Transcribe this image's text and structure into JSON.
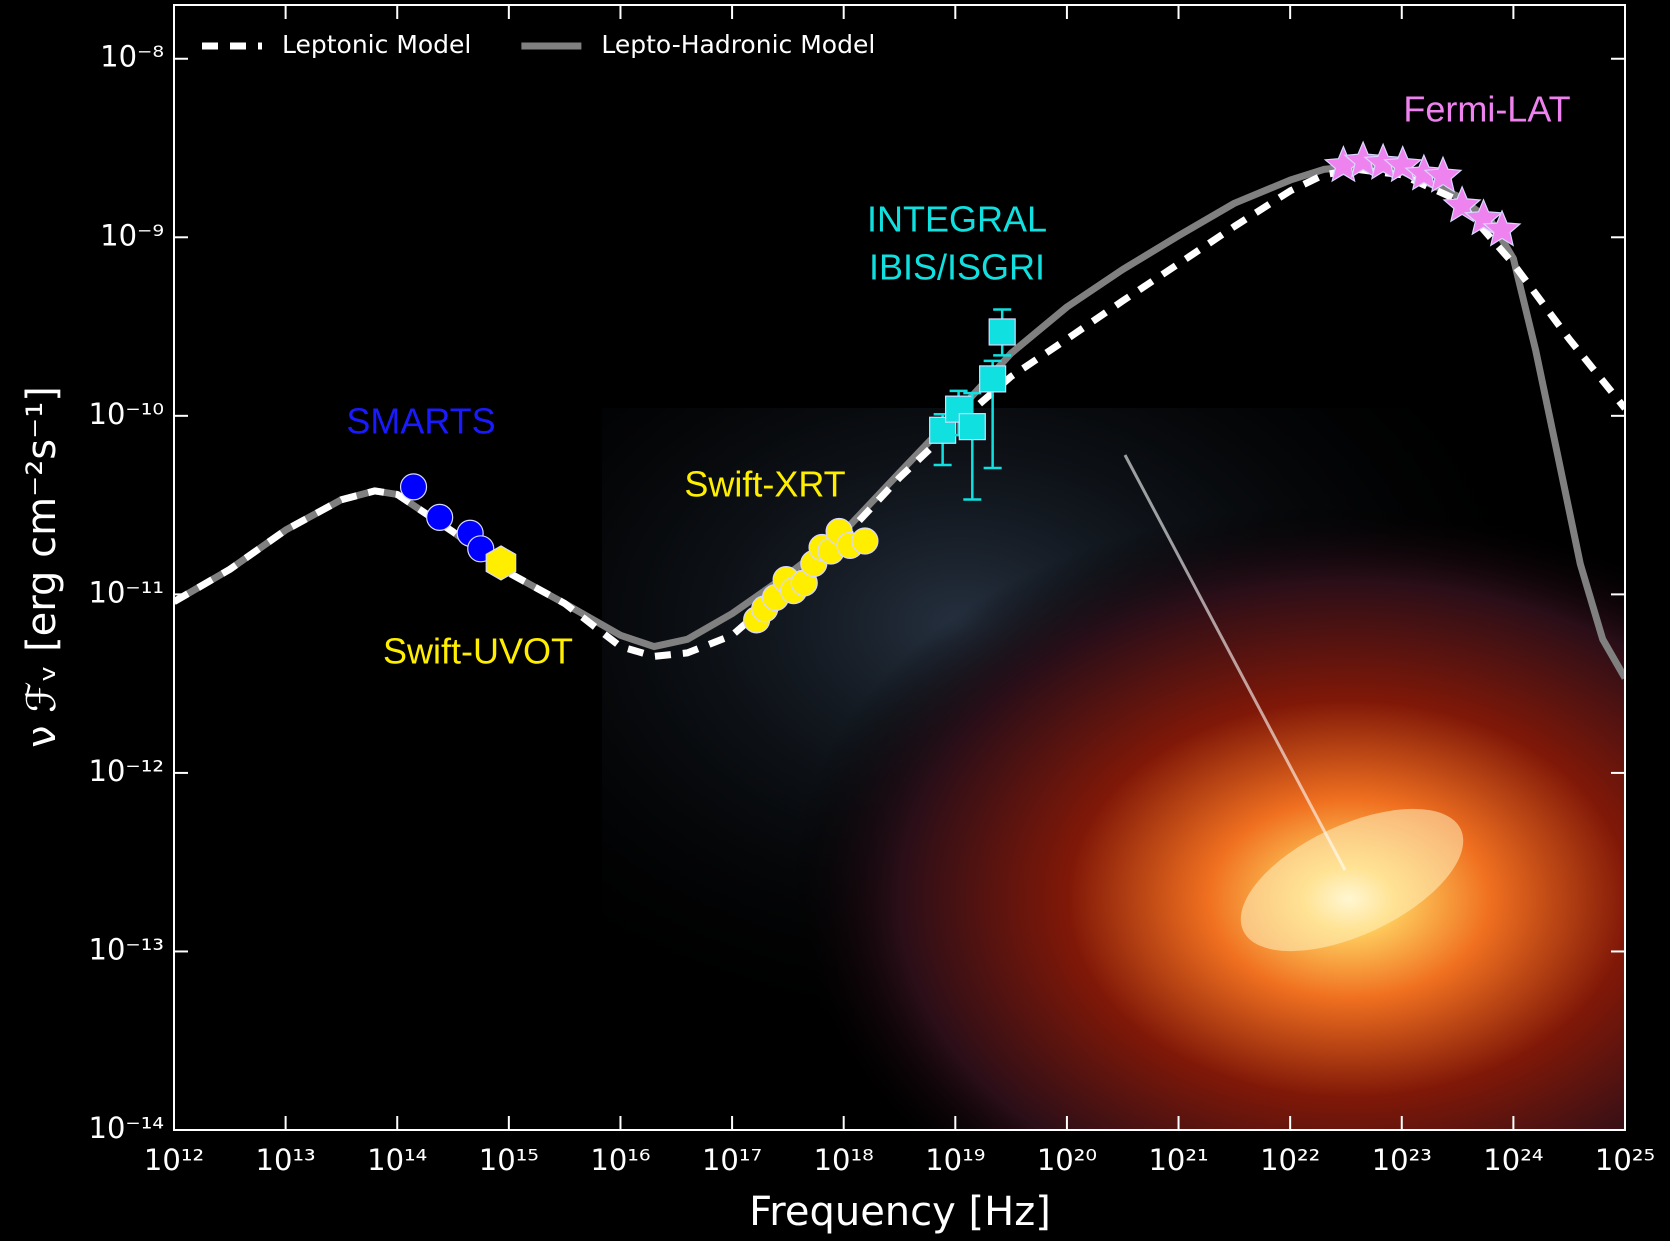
{
  "chart_data": {
    "type": "line",
    "xlabel": "Frequency [Hz]",
    "ylabel": "ν ℱᵥ [erg cm⁻²s⁻¹]",
    "xscale": "log",
    "yscale": "log",
    "xlim": [
      1000000000000.0,
      1e+25
    ],
    "ylim": [
      1e-14,
      2e-08
    ],
    "legend": "upper left",
    "xticks": [
      {
        "value": 1000000000000.0,
        "label": "10¹²"
      },
      {
        "value": 10000000000000.0,
        "label": "10¹³"
      },
      {
        "value": 100000000000000.0,
        "label": "10¹⁴"
      },
      {
        "value": 1000000000000000.0,
        "label": "10¹⁵"
      },
      {
        "value": 1e+16,
        "label": "10¹⁶"
      },
      {
        "value": 1e+17,
        "label": "10¹⁷"
      },
      {
        "value": 1e+18,
        "label": "10¹⁸"
      },
      {
        "value": 1e+19,
        "label": "10¹⁹"
      },
      {
        "value": 1e+20,
        "label": "10²⁰"
      },
      {
        "value": 1e+21,
        "label": "10²¹"
      },
      {
        "value": 1e+22,
        "label": "10²²"
      },
      {
        "value": 1e+23,
        "label": "10²³"
      },
      {
        "value": 1e+24,
        "label": "10²⁴"
      },
      {
        "value": 1e+25,
        "label": "10²⁵"
      }
    ],
    "yticks": [
      {
        "value": 1e-14,
        "label": "10⁻¹⁴"
      },
      {
        "value": 1e-13,
        "label": "10⁻¹³"
      },
      {
        "value": 1e-12,
        "label": "10⁻¹²"
      },
      {
        "value": 1e-11,
        "label": "10⁻¹¹"
      },
      {
        "value": 1e-10,
        "label": "10⁻¹⁰"
      },
      {
        "value": 1e-09,
        "label": "10⁻⁹"
      },
      {
        "value": 1e-08,
        "label": "10⁻⁸"
      }
    ],
    "series": [
      {
        "name": "Lepto-Hadronic Model",
        "color": "#808080",
        "dash": "solid",
        "x": [
          1000000000000.0,
          3160000000000.0,
          10000000000000.0,
          31600000000000.0,
          63100000000000.0,
          100000000000000.0,
          316000000000000.0,
          1000000000000000.0,
          3160000000000000.0,
          1e+16,
          2e+16,
          3.98e+16,
          1e+17,
          3.16e+17,
          1e+18,
          3.16e+18,
          1e+19,
          3.16e+19,
          1e+20,
          3.16e+20,
          1e+21,
          3.16e+21,
          1e+22,
          2e+22,
          3.98e+22,
          1e+23,
          3.16e+23,
          6.31e+23,
          1e+24,
          1.58e+24,
          2.51e+24,
          3.98e+24,
          6.31e+24,
          1e+25
        ],
        "values": [
          9.1e-12,
          1.38e-11,
          2.29e-11,
          3.39e-11,
          3.8e-11,
          3.63e-11,
          2.24e-11,
          1.32e-11,
          8.9e-12,
          5.9e-12,
          5.1e-12,
          5.6e-12,
          7.8e-12,
          1.29e-11,
          2.24e-11,
          4.8e-11,
          1.02e-10,
          2.24e-10,
          4.07e-10,
          6.6e-10,
          1.02e-09,
          1.55e-09,
          2.09e-09,
          2.4e-09,
          2.51e-09,
          2.34e-09,
          1.7e-09,
          1.23e-09,
          7.6e-10,
          2.34e-10,
          5.9e-11,
          1.48e-11,
          5.6e-12,
          3.4e-12
        ]
      },
      {
        "name": "Leptonic Model",
        "color": "#ffffff",
        "dash": "dashed",
        "x": [
          1000000000000.0,
          3160000000000.0,
          10000000000000.0,
          31600000000000.0,
          63100000000000.0,
          100000000000000.0,
          316000000000000.0,
          1000000000000000.0,
          3160000000000000.0,
          1e+16,
          2e+16,
          3.98e+16,
          1e+17,
          3.16e+17,
          1e+18,
          3.16e+18,
          1e+19,
          3.16e+19,
          1e+20,
          3.16e+20,
          1e+21,
          3.16e+21,
          1e+22,
          2e+22,
          3.98e+22,
          1e+23,
          3.16e+23,
          1e+24,
          3.16e+24,
          1e+25
        ],
        "values": [
          9.1e-12,
          1.38e-11,
          2.29e-11,
          3.39e-11,
          3.8e-11,
          3.63e-11,
          2.24e-11,
          1.32e-11,
          8.9e-12,
          5.1e-12,
          4.5e-12,
          4.7e-12,
          5.9e-12,
          1.1e-11,
          2.09e-11,
          4.5e-11,
          8.9e-11,
          1.66e-10,
          2.69e-10,
          4.4e-10,
          7.1e-10,
          1.15e-09,
          1.82e-09,
          2.24e-09,
          2.4e-09,
          2.24e-09,
          1.62e-09,
          7.1e-10,
          2.69e-10,
          1.1e-10
        ]
      }
    ],
    "datasets": [
      {
        "label": [
          "SMARTS"
        ],
        "color": "#0000ff",
        "label_color": "#1a1aff",
        "marker": "circle",
        "x": [
          140000000000000.0,
          240000000000000.0,
          450000000000000.0,
          560000000000000.0
        ],
        "values": [
          4e-11,
          2.7e-11,
          2.2e-11,
          1.8e-11
        ]
      },
      {
        "label": [
          "Swift-UVOT"
        ],
        "color": "#ffee00",
        "label_color": "#ffee00",
        "marker": "hexagon",
        "x": [
          850000000000000.0
        ],
        "values": [
          1.5e-11
        ]
      },
      {
        "label": [
          "Swift-XRT"
        ],
        "color": "#ffee00",
        "label_color": "#ffee00",
        "marker": "circle",
        "x": [
          1.66e+17,
          1.96e+17,
          2.45e+17,
          3.05e+17,
          3.56e+17,
          4.43e+17,
          5.4e+17,
          6.4e+17,
          7.7e+17,
          9.1e+17,
          1.14e+18,
          1.55e+18
        ],
        "values": [
          7.2e-12,
          8.3e-12,
          9.6e-12,
          1.21e-11,
          1.05e-11,
          1.16e-11,
          1.49e-11,
          1.83e-11,
          1.75e-11,
          2.25e-11,
          1.88e-11,
          1.99e-11
        ]
      },
      {
        "label": [
          "INTEGRAL",
          "IBIS/ISGRI"
        ],
        "color": "#11e0e0",
        "label_color": "#11e0e0",
        "marker": "square",
        "x": [
          7.7e+18,
          1.07e+19,
          1.42e+19,
          2.16e+19,
          2.63e+19
        ],
        "values": [
          8.3e-11,
          1.09e-10,
          8.7e-11,
          1.61e-10,
          2.95e-10
        ],
        "y_low": [
          5.3e-11,
          7.8e-11,
          3.4e-11,
          5.1e-11,
          2.18e-10
        ],
        "y_high": [
          1.02e-10,
          1.38e-10,
          1.34e-10,
          2.03e-10,
          3.94e-10
        ]
      },
      {
        "label": [
          "Fermi-LAT"
        ],
        "color": "#ee82ee",
        "label_color": "#ee82ee",
        "marker": "star",
        "x": [
          3e+22,
          4.5e+22,
          6.8e+22,
          1.02e+23,
          1.58e+23,
          2.34e+23,
          3.47e+23,
          5.4e+23,
          7.9e+23
        ],
        "values": [
          2.52e-09,
          2.67e-09,
          2.6e-09,
          2.52e-09,
          2.26e-09,
          2.2e-09,
          1.5e-09,
          1.27e-09,
          1.1e-09
        ]
      }
    ]
  }
}
